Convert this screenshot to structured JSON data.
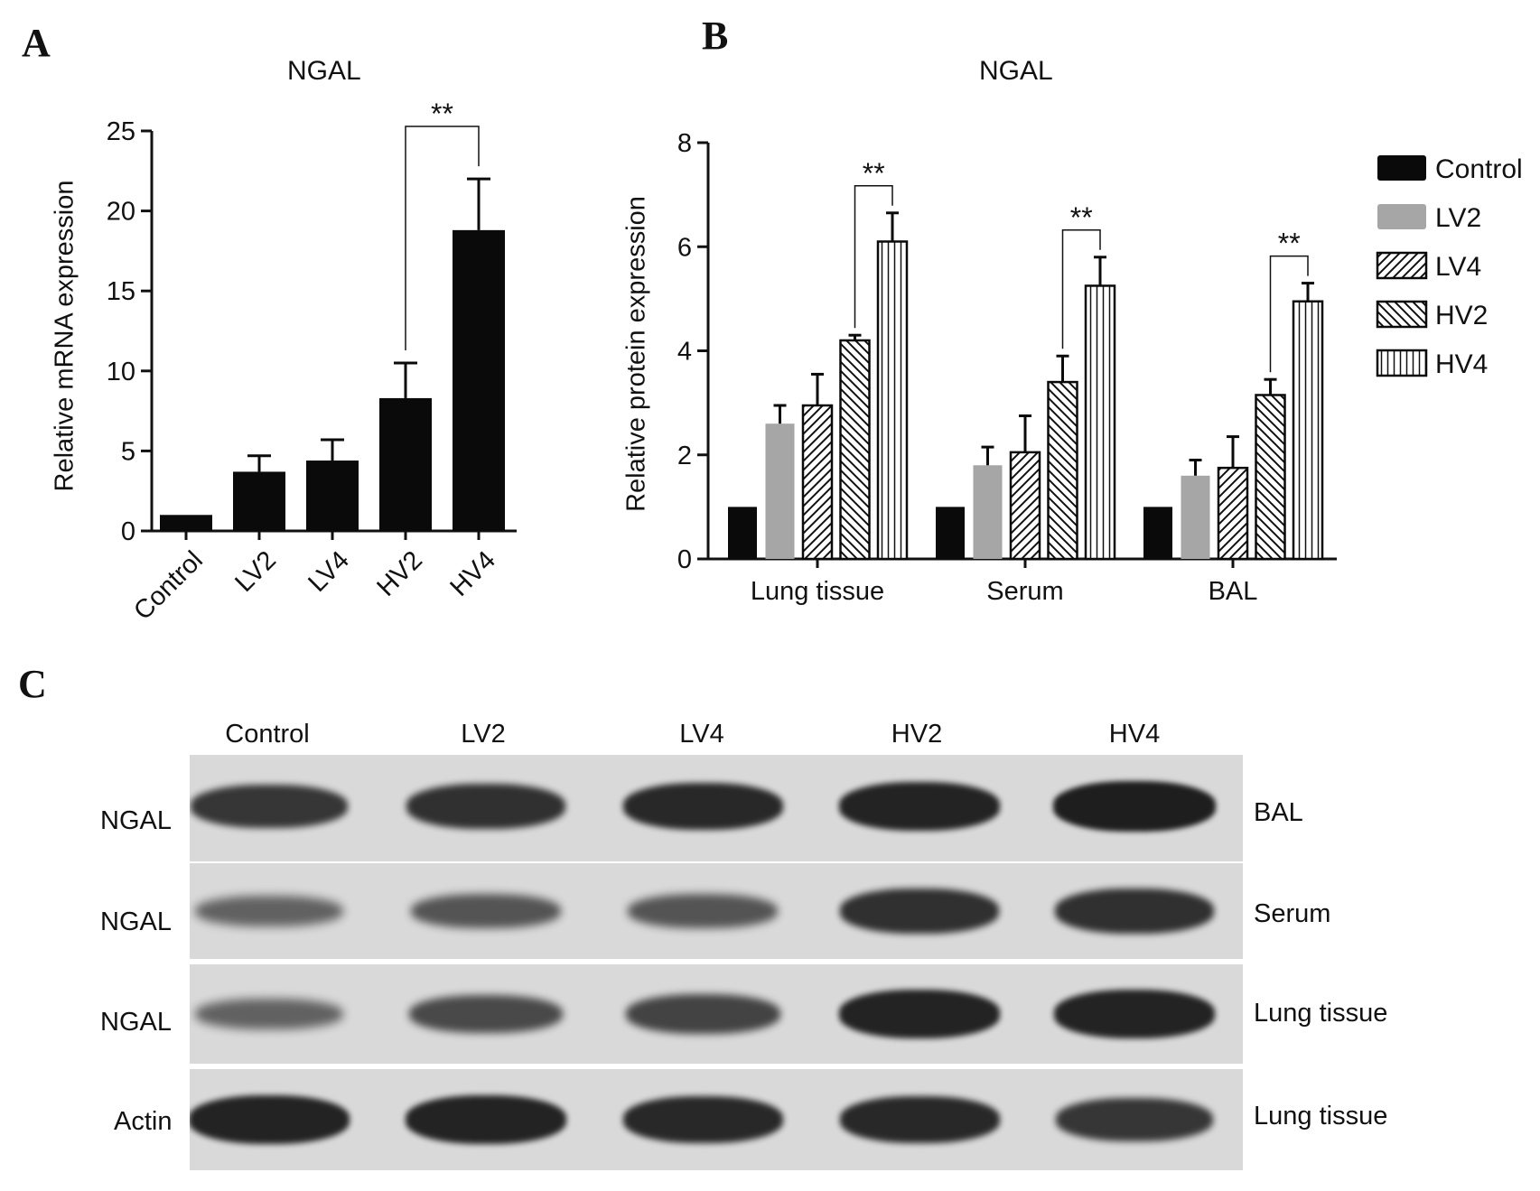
{
  "panels": {
    "a": "A",
    "b": "B",
    "c": "C"
  },
  "colors": {
    "bar_dark": "#0a0a0a",
    "bar_gray": "#a6a6a6",
    "axis": "#111111",
    "blot_bg": "#d9d9d9",
    "band": "#1e1e1e"
  },
  "chart_data": [
    {
      "type": "bar",
      "title": "NGAL",
      "xlabel": "",
      "ylabel": "Relative mRNA expression",
      "ylim": [
        0,
        25
      ],
      "yticks": [
        0,
        5,
        10,
        15,
        20,
        25
      ],
      "categories": [
        "Control",
        "LV2",
        "LV4",
        "HV2",
        "HV4"
      ],
      "values": [
        1.0,
        3.7,
        4.4,
        8.3,
        18.8
      ],
      "errors": [
        0,
        1.0,
        1.3,
        2.2,
        3.2
      ],
      "significance": [
        {
          "from": "HV2",
          "to": "HV4",
          "label": "**"
        }
      ]
    },
    {
      "type": "bar",
      "title": "NGAL",
      "xlabel": "",
      "ylabel": "Relative protein expression",
      "ylim": [
        0,
        8
      ],
      "yticks": [
        0,
        2,
        4,
        6,
        8
      ],
      "categories": [
        "Lung tissue",
        "Serum",
        "BAL"
      ],
      "legend_position": "right",
      "series": [
        {
          "name": "Control",
          "pattern": "solid-black",
          "values": [
            1.0,
            1.0,
            1.0
          ],
          "errors": [
            0,
            0,
            0
          ]
        },
        {
          "name": "LV2",
          "pattern": "solid-gray",
          "values": [
            2.6,
            1.8,
            1.6
          ],
          "errors": [
            0.35,
            0.35,
            0.3
          ]
        },
        {
          "name": "LV4",
          "pattern": "diagonal-right",
          "values": [
            2.95,
            2.05,
            1.75
          ],
          "errors": [
            0.6,
            0.7,
            0.6
          ]
        },
        {
          "name": "HV2",
          "pattern": "diagonal-left",
          "values": [
            4.2,
            3.4,
            3.15
          ],
          "errors": [
            0.1,
            0.5,
            0.3
          ]
        },
        {
          "name": "HV4",
          "pattern": "vertical-lines",
          "values": [
            6.1,
            5.25,
            4.95
          ],
          "errors": [
            0.55,
            0.55,
            0.35
          ]
        }
      ],
      "significance": [
        {
          "category": "Lung tissue",
          "from": "HV2",
          "to": "HV4",
          "label": "**"
        },
        {
          "category": "Serum",
          "from": "HV2",
          "to": "HV4",
          "label": "**"
        },
        {
          "category": "BAL",
          "from": "HV2",
          "to": "HV4",
          "label": "**"
        }
      ]
    }
  ],
  "western_blot": {
    "lanes": [
      "Control",
      "LV2",
      "LV4",
      "HV2",
      "HV4"
    ],
    "rows": [
      {
        "label": "NGAL",
        "sample": "BAL",
        "intensities": [
          0.8,
          0.85,
          0.9,
          0.95,
          1.0
        ]
      },
      {
        "label": "NGAL",
        "sample": "Serum",
        "intensities": [
          0.45,
          0.55,
          0.55,
          0.85,
          0.85
        ]
      },
      {
        "label": "NGAL",
        "sample": "Lung tissue",
        "intensities": [
          0.45,
          0.65,
          0.7,
          0.95,
          0.95
        ]
      },
      {
        "label": "Actin",
        "sample": "Lung tissue",
        "intensities": [
          0.95,
          0.95,
          0.9,
          0.9,
          0.8
        ]
      }
    ]
  }
}
